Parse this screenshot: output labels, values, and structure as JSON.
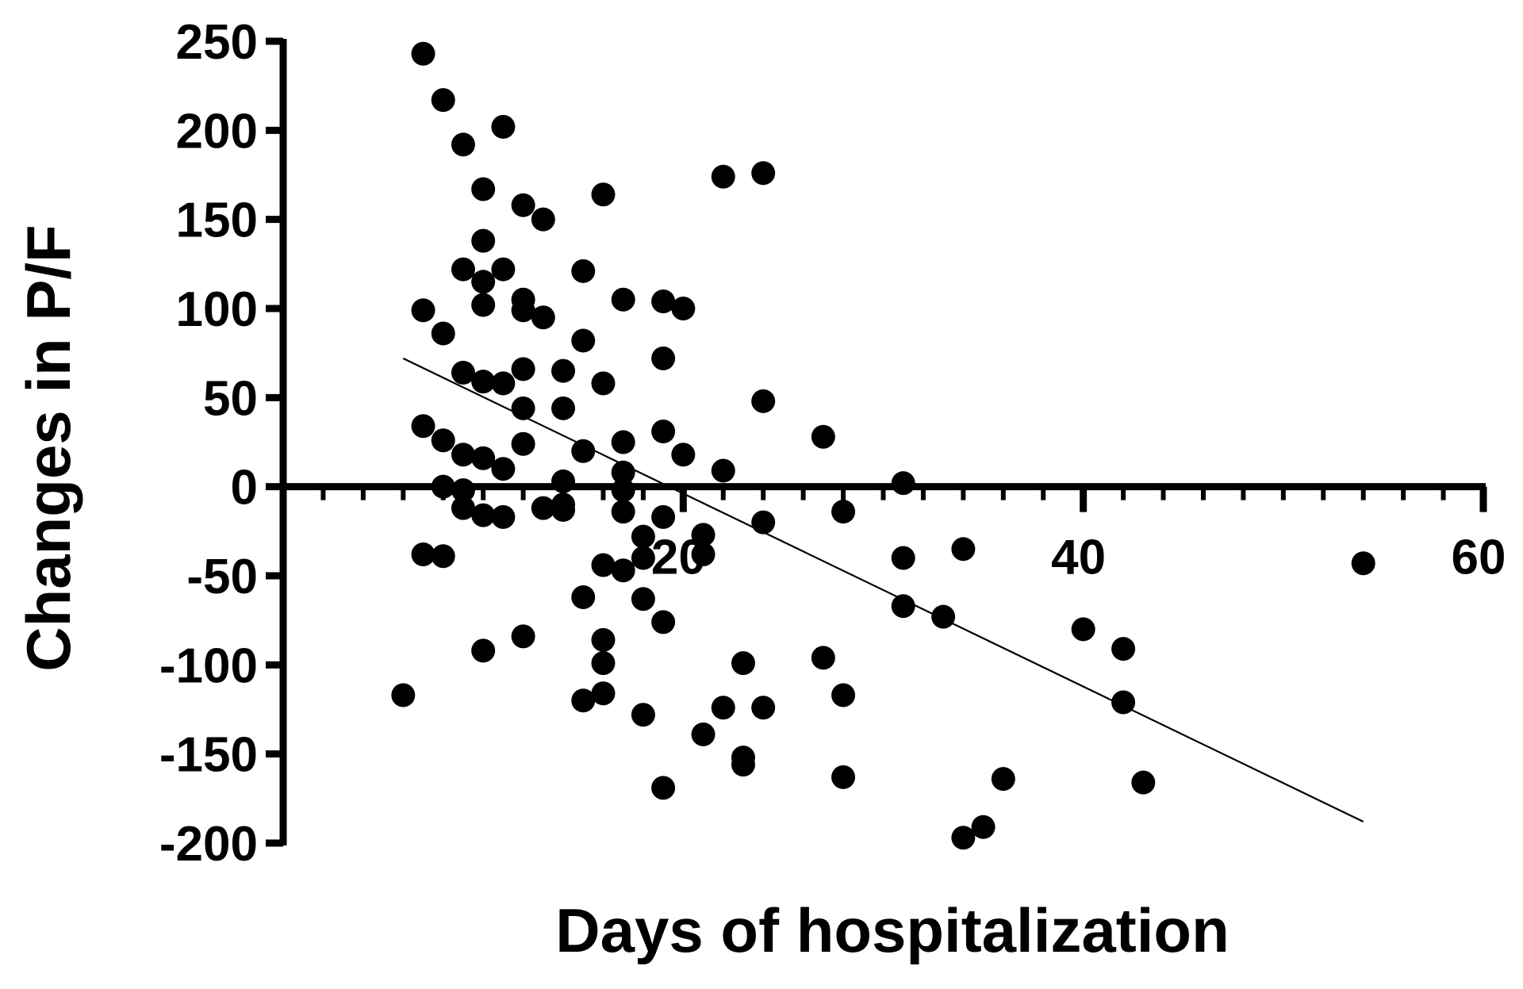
{
  "chart_data": {
    "type": "scatter",
    "xlabel": "Days of hospitalization",
    "ylabel": "Changes in P/F",
    "xlim": [
      0,
      60
    ],
    "ylim": [
      -200,
      250
    ],
    "x_ticks": [
      20,
      40,
      60
    ],
    "y_ticks": [
      250,
      200,
      150,
      100,
      50,
      0,
      -50,
      -100,
      -150,
      -200
    ],
    "x_minor_step": 2,
    "grid": false,
    "legend": "none",
    "colors": {
      "points": "#000000",
      "axes": "#000000",
      "fit_line": "#000000"
    },
    "series": [
      {
        "points": [
          [
            7,
            243
          ],
          [
            8,
            217
          ],
          [
            9,
            192
          ],
          [
            10,
            167
          ],
          [
            11,
            202
          ],
          [
            12,
            158
          ],
          [
            13,
            150
          ],
          [
            16,
            164
          ],
          [
            22,
            174
          ],
          [
            24,
            176
          ],
          [
            10,
            138
          ],
          [
            9,
            122
          ],
          [
            10,
            115
          ],
          [
            11,
            122
          ],
          [
            10,
            102
          ],
          [
            12,
            105
          ],
          [
            12,
            99
          ],
          [
            13,
            95
          ],
          [
            15,
            121
          ],
          [
            17,
            105
          ],
          [
            19,
            104
          ],
          [
            20,
            100
          ],
          [
            7,
            99
          ],
          [
            8,
            86
          ],
          [
            15,
            82
          ],
          [
            19,
            72
          ],
          [
            9,
            64
          ],
          [
            10,
            59
          ],
          [
            11,
            58
          ],
          [
            12,
            66
          ],
          [
            14,
            65
          ],
          [
            16,
            58
          ],
          [
            12,
            44
          ],
          [
            14,
            44
          ],
          [
            24,
            48
          ],
          [
            7,
            34
          ],
          [
            8,
            26
          ],
          [
            9,
            18
          ],
          [
            10,
            16
          ],
          [
            11,
            10
          ],
          [
            12,
            24
          ],
          [
            15,
            20
          ],
          [
            17,
            25
          ],
          [
            19,
            31
          ],
          [
            20,
            18
          ],
          [
            27,
            28
          ],
          [
            17,
            8
          ],
          [
            22,
            9
          ],
          [
            14,
            3
          ],
          [
            31,
            2
          ],
          [
            8,
            0
          ],
          [
            9,
            -2
          ],
          [
            9,
            -12
          ],
          [
            10,
            -16
          ],
          [
            11,
            -17
          ],
          [
            13,
            -12
          ],
          [
            14,
            -10
          ],
          [
            14,
            -13
          ],
          [
            17,
            -2
          ],
          [
            17,
            -14
          ],
          [
            19,
            -17
          ],
          [
            24,
            -20
          ],
          [
            28,
            -14
          ],
          [
            18,
            -28
          ],
          [
            21,
            -27
          ],
          [
            18,
            -40
          ],
          [
            21,
            -38
          ],
          [
            16,
            -44
          ],
          [
            17,
            -47
          ],
          [
            31,
            -40
          ],
          [
            34,
            -35
          ],
          [
            7,
            -38
          ],
          [
            8,
            -39
          ],
          [
            15,
            -62
          ],
          [
            18,
            -63
          ],
          [
            31,
            -67
          ],
          [
            33,
            -73
          ],
          [
            19,
            -76
          ],
          [
            10,
            -92
          ],
          [
            12,
            -84
          ],
          [
            16,
            -86
          ],
          [
            16,
            -99
          ],
          [
            23,
            -99
          ],
          [
            27,
            -96
          ],
          [
            40,
            -80
          ],
          [
            42,
            -91
          ],
          [
            6,
            -117
          ],
          [
            15,
            -120
          ],
          [
            16,
            -116
          ],
          [
            18,
            -128
          ],
          [
            22,
            -124
          ],
          [
            24,
            -124
          ],
          [
            28,
            -117
          ],
          [
            42,
            -121
          ],
          [
            21,
            -139
          ],
          [
            23,
            -152
          ],
          [
            23,
            -156
          ],
          [
            28,
            -163
          ],
          [
            19,
            -169
          ],
          [
            36,
            -164
          ],
          [
            43,
            -166
          ],
          [
            34,
            -197
          ],
          [
            35,
            -191
          ],
          [
            54,
            -43
          ]
        ]
      }
    ],
    "regression_line": {
      "x": [
        6,
        54
      ],
      "y": [
        72,
        -188
      ]
    }
  }
}
